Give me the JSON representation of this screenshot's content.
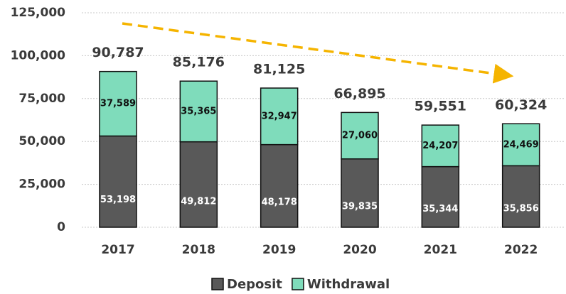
{
  "chart_data": {
    "type": "stacked_bar",
    "categories": [
      "2017",
      "2018",
      "2019",
      "2020",
      "2021",
      "2022"
    ],
    "series": [
      {
        "name": "Deposit",
        "color": "#595959",
        "values": [
          53198,
          49812,
          48178,
          39835,
          35344,
          35856
        ],
        "value_labels": [
          "53,198",
          "49,812",
          "48,178",
          "39,835",
          "35,344",
          "35,856"
        ]
      },
      {
        "name": "Withdrawal",
        "color": "#7fdcbb",
        "values": [
          37589,
          35365,
          32947,
          27060,
          24207,
          24469
        ],
        "value_labels": [
          "37,589",
          "35,365",
          "32,947",
          "27,060",
          "24,207",
          "24,469"
        ]
      }
    ],
    "total_labels": [
      "90,787",
      "85,176",
      "81,125",
      "66,895",
      "59,551",
      "60,324"
    ],
    "ylim": [
      0,
      125000
    ],
    "yticks": [
      {
        "value": 0,
        "label": "0"
      },
      {
        "value": 25000,
        "label": "25,000"
      },
      {
        "value": 50000,
        "label": "50,000"
      },
      {
        "value": 75000,
        "label": "75,000"
      },
      {
        "value": 100000,
        "label": "100,000"
      },
      {
        "value": 125000,
        "label": "125,000"
      }
    ],
    "grid": true,
    "legend": "bottom"
  }
}
